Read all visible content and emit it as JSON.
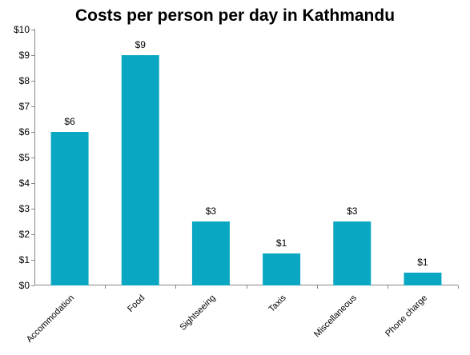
{
  "chart_data": {
    "type": "bar",
    "title": "Costs per person per day in Kathmandu",
    "xlabel": "",
    "ylabel": "",
    "categories": [
      "Accommodation",
      "Food",
      "Sightseeing",
      "Taxis",
      "Miscellaneous",
      "Phone charge"
    ],
    "values": [
      6,
      9,
      2.5,
      1.25,
      2.5,
      0.5
    ],
    "data_labels": [
      "$6",
      "$9",
      "$3",
      "$1",
      "$3",
      "$1"
    ],
    "ylim": [
      0,
      10
    ],
    "y_ticks": [
      0,
      1,
      2,
      3,
      4,
      5,
      6,
      7,
      8,
      9,
      10
    ],
    "y_tick_labels": [
      "$0",
      "$1",
      "$2",
      "$3",
      "$4",
      "$5",
      "$6",
      "$7",
      "$8",
      "$9",
      "$10"
    ],
    "grid": false,
    "legend": "none",
    "bar_color": "#0AA7C2"
  }
}
